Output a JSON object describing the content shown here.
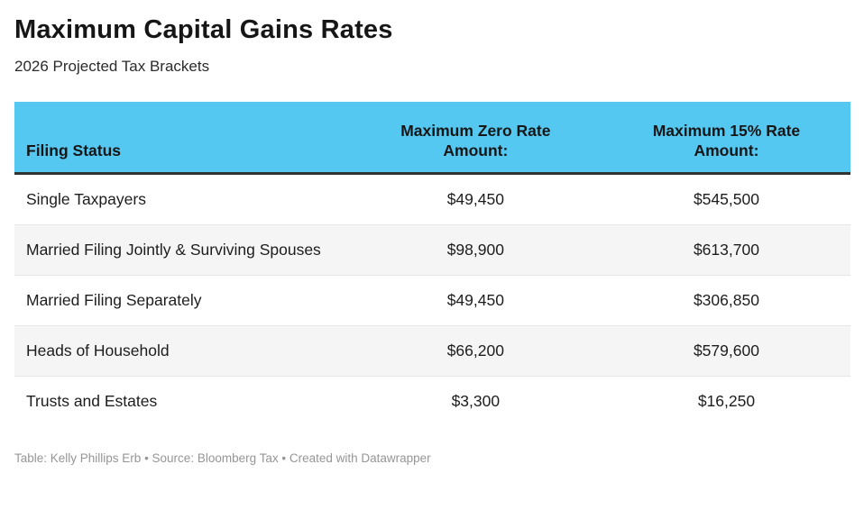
{
  "header": {
    "title": "Maximum Capital Gains Rates",
    "subtitle": "2026 Projected Tax Brackets"
  },
  "table": {
    "columns": [
      {
        "label": "Filing Status"
      },
      {
        "line1": "Maximum Zero Rate",
        "line2": "Amount:"
      },
      {
        "line1": "Maximum 15% Rate",
        "line2": "Amount:"
      }
    ],
    "rows": [
      {
        "filing_status": "Single Taxpayers",
        "zero_rate_amount": "$49,450",
        "rate_15_amount": "$545,500"
      },
      {
        "filing_status": "Married Filing Jointly & Surviving Spouses",
        "zero_rate_amount": "$98,900",
        "rate_15_amount": "$613,700"
      },
      {
        "filing_status": "Married Filing Separately",
        "zero_rate_amount": "$49,450",
        "rate_15_amount": "$306,850"
      },
      {
        "filing_status": "Heads of Household",
        "zero_rate_amount": "$66,200",
        "rate_15_amount": "$579,600"
      },
      {
        "filing_status": "Trusts and Estates",
        "zero_rate_amount": "$3,300",
        "rate_15_amount": "$16,250"
      }
    ]
  },
  "footer": {
    "text": "Table: Kelly Phillips Erb • Source: Bloomberg Tax • Created with Datawrapper"
  },
  "colors": {
    "header_background": "#55c8f2",
    "header_text": "#161616",
    "header_bottom_border": "#323232",
    "row_stripe": "#f5f5f5",
    "row_divider": "#e6e6e6",
    "body_text": "#1d1d1d",
    "footer_text": "#969696",
    "page_background": "#ffffff"
  },
  "chart_data": {
    "type": "table",
    "title": "Maximum Capital Gains Rates",
    "subtitle": "2026 Projected Tax Brackets",
    "columns": [
      "Filing Status",
      "Maximum Zero Rate Amount:",
      "Maximum 15% Rate Amount:"
    ],
    "rows": [
      [
        "Single Taxpayers",
        49450,
        545500
      ],
      [
        "Married Filing Jointly & Surviving Spouses",
        98900,
        613700
      ],
      [
        "Married Filing Separately",
        49450,
        306850
      ],
      [
        "Heads of Household",
        66200,
        579600
      ],
      [
        "Trusts and Estates",
        3300,
        16250
      ]
    ],
    "footnote": "Table: Kelly Phillips Erb • Source: Bloomberg Tax • Created with Datawrapper",
    "layout_hints": {
      "value_alignment": "center",
      "zebra_striping": true,
      "header_style": "blue-fill-bottom-aligned"
    }
  }
}
